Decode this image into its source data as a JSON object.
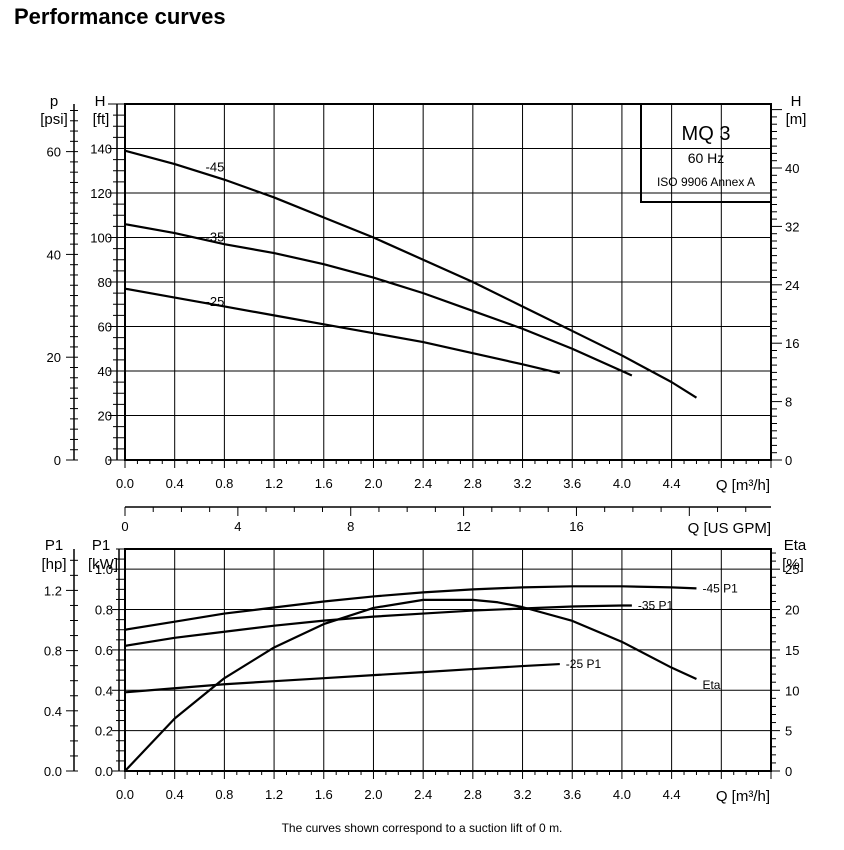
{
  "title": "Performance curves",
  "footnote": "The curves shown correspond to a suction lift of 0 m.",
  "legend_box": {
    "model": "MQ 3",
    "frequency": "60 Hz",
    "standard": "ISO 9906 Annex A"
  },
  "chart_data": [
    {
      "type": "line",
      "name_top_axis_labels": {
        "left_outer_unit_symbol": "p",
        "left_outer_unit": "[psi]",
        "left_inner_unit_symbol": "H",
        "left_inner_unit": "[ft]",
        "right_unit_symbol": "H",
        "right_unit": "[m]",
        "x_label": "Q [m³/h]"
      },
      "x_ticks": [
        "0.0",
        "0.4",
        "0.8",
        "1.2",
        "1.6",
        "2.0",
        "2.4",
        "2.8",
        "3.2",
        "3.6",
        "4.0",
        "4.4"
      ],
      "y_ft_ticks": [
        "0",
        "20",
        "40",
        "60",
        "80",
        "100",
        "120",
        "140"
      ],
      "y_psi_ticks": [
        "0",
        "20",
        "40",
        "60"
      ],
      "y_m_ticks": [
        "0",
        "8",
        "16",
        "24",
        "32",
        "40"
      ],
      "xlim": [
        0,
        5.2
      ],
      "ylim_ft": [
        0,
        160
      ],
      "series": [
        {
          "name": "-45",
          "x": [
            0,
            0.4,
            0.8,
            1.2,
            1.6,
            2.0,
            2.4,
            2.8,
            3.2,
            3.6,
            4.0,
            4.4,
            4.6
          ],
          "y": [
            139,
            133,
            126,
            118,
            109,
            100,
            90,
            80,
            69,
            58,
            47,
            35,
            28
          ]
        },
        {
          "name": "-35",
          "x": [
            0,
            0.4,
            0.8,
            1.2,
            1.6,
            2.0,
            2.4,
            2.8,
            3.2,
            3.6,
            4.0,
            4.08
          ],
          "y": [
            106,
            102,
            97,
            93,
            88,
            82,
            75,
            67,
            59,
            50,
            40,
            38
          ]
        },
        {
          "name": "-25",
          "x": [
            0,
            0.4,
            0.8,
            1.2,
            1.6,
            2.0,
            2.4,
            2.8,
            3.2,
            3.5
          ],
          "y": [
            77,
            73,
            69,
            65,
            61,
            57,
            53,
            48,
            43,
            39
          ]
        }
      ]
    },
    {
      "type": "line",
      "axis_labels": {
        "secondary_x_label": "Q [US GPM]",
        "left_outer_unit_symbol": "P1",
        "left_outer_unit": "[hp]",
        "left_inner_unit_symbol": "P1",
        "left_inner_unit": "[kW]",
        "right_unit_symbol": "Eta",
        "right_unit": "[%]",
        "x_label": "Q [m³/h]"
      },
      "gpm_ticks": [
        "0",
        "4",
        "8",
        "12",
        "16"
      ],
      "x_ticks": [
        "0.0",
        "0.4",
        "0.8",
        "1.2",
        "1.6",
        "2.0",
        "2.4",
        "2.8",
        "3.2",
        "3.6",
        "4.0",
        "4.4"
      ],
      "y_kw_ticks": [
        "0.0",
        "0.2",
        "0.4",
        "0.6",
        "0.8",
        "1.0"
      ],
      "y_hp_ticks": [
        "0.0",
        "0.4",
        "0.8",
        "1.2"
      ],
      "y_eta_ticks": [
        "0",
        "5",
        "10",
        "15",
        "20",
        "25"
      ],
      "xlim": [
        0,
        5.2
      ],
      "ylim_kw": [
        0,
        1.1
      ],
      "series": [
        {
          "name": "-45 P1",
          "x": [
            0,
            0.4,
            0.8,
            1.2,
            1.6,
            2.0,
            2.4,
            2.8,
            3.2,
            3.6,
            4.0,
            4.4,
            4.6
          ],
          "y": [
            0.7,
            0.74,
            0.78,
            0.81,
            0.84,
            0.865,
            0.885,
            0.9,
            0.91,
            0.915,
            0.915,
            0.91,
            0.905
          ],
          "unit": "kW"
        },
        {
          "name": "-35 P1",
          "x": [
            0,
            0.4,
            0.8,
            1.2,
            1.6,
            2.0,
            2.4,
            2.8,
            3.2,
            3.6,
            4.0,
            4.08
          ],
          "y": [
            0.62,
            0.66,
            0.69,
            0.72,
            0.745,
            0.765,
            0.78,
            0.795,
            0.805,
            0.815,
            0.82,
            0.82
          ],
          "unit": "kW"
        },
        {
          "name": "-25 P1",
          "x": [
            0,
            0.4,
            0.8,
            1.2,
            1.6,
            2.0,
            2.4,
            2.8,
            3.2,
            3.5
          ],
          "y": [
            0.39,
            0.41,
            0.43,
            0.445,
            0.46,
            0.475,
            0.49,
            0.505,
            0.52,
            0.53
          ],
          "unit": "kW"
        },
        {
          "name": "Eta",
          "x": [
            0,
            0.4,
            0.8,
            1.2,
            1.6,
            2.0,
            2.4,
            2.8,
            3.0,
            3.2,
            3.6,
            4.0,
            4.4,
            4.6
          ],
          "y": [
            0,
            6.5,
            11.5,
            15.3,
            18.2,
            20.2,
            21.2,
            21.2,
            20.9,
            20.3,
            18.6,
            16.0,
            12.8,
            11.4
          ],
          "unit": "%"
        }
      ]
    }
  ]
}
